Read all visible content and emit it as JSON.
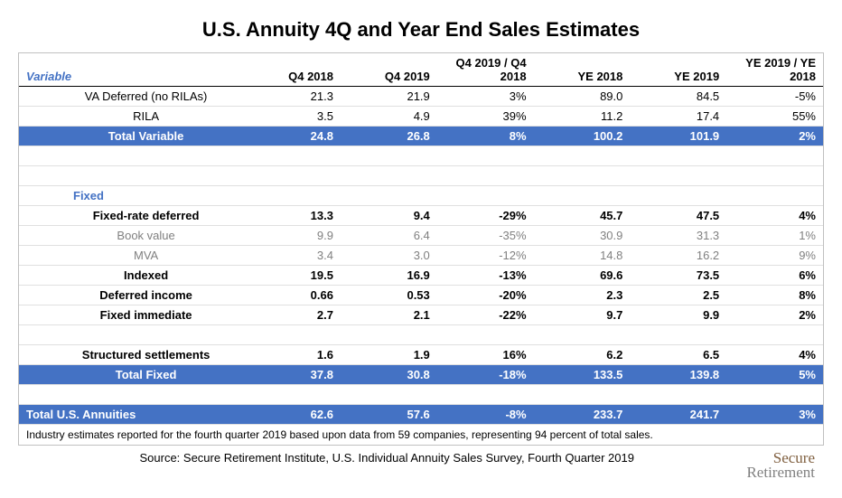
{
  "title": "U.S. Annuity 4Q and Year End Sales Estimates",
  "columns": [
    "Q4 2018",
    "Q4 2019",
    "Q4 2019 / Q4 2018",
    "YE 2018",
    "YE 2019",
    "YE 2019 / YE 2018"
  ],
  "variable_header": "Variable",
  "fixed_header": "Fixed",
  "rows_variable": [
    {
      "label": "VA Deferred (no RILAs)",
      "v": [
        "21.3",
        "21.9",
        "3%",
        "89.0",
        "84.5",
        "-5%"
      ],
      "cls": ""
    },
    {
      "label": "RILA",
      "v": [
        "3.5",
        "4.9",
        "39%",
        "11.2",
        "17.4",
        "55%"
      ],
      "cls": ""
    }
  ],
  "total_variable": {
    "label": "Total Variable",
    "v": [
      "24.8",
      "26.8",
      "8%",
      "100.2",
      "101.9",
      "2%"
    ]
  },
  "rows_fixed": [
    {
      "label": "Fixed-rate deferred",
      "v": [
        "13.3",
        "9.4",
        "-29%",
        "45.7",
        "47.5",
        "4%"
      ],
      "cls": "bold-row"
    },
    {
      "label": "Book value",
      "v": [
        "9.9",
        "6.4",
        "-35%",
        "30.9",
        "31.3",
        "1%"
      ],
      "cls": "gray-row"
    },
    {
      "label": "MVA",
      "v": [
        "3.4",
        "3.0",
        "-12%",
        "14.8",
        "16.2",
        "9%"
      ],
      "cls": "gray-row"
    },
    {
      "label": "Indexed",
      "v": [
        "19.5",
        "16.9",
        "-13%",
        "69.6",
        "73.5",
        "6%"
      ],
      "cls": "bold-row"
    },
    {
      "label": "Deferred income",
      "v": [
        "0.66",
        "0.53",
        "-20%",
        "2.3",
        "2.5",
        "8%"
      ],
      "cls": "bold-row"
    },
    {
      "label": "Fixed immediate",
      "v": [
        "2.7",
        "2.1",
        "-22%",
        "9.7",
        "9.9",
        "2%"
      ],
      "cls": "bold-row"
    }
  ],
  "structured": {
    "label": "Structured settlements",
    "v": [
      "1.6",
      "1.9",
      "16%",
      "6.2",
      "6.5",
      "4%"
    ]
  },
  "total_fixed": {
    "label": "Total Fixed",
    "v": [
      "37.8",
      "30.8",
      "-18%",
      "133.5",
      "139.8",
      "5%"
    ]
  },
  "total_us": {
    "label": "Total U.S. Annuities",
    "v": [
      "62.6",
      "57.6",
      "-8%",
      "233.7",
      "241.7",
      "3%"
    ]
  },
  "footnote": "Industry estimates reported for the fourth quarter 2019 based upon data from 59 companies, representing 94 percent of total sales.",
  "source": "Source: Secure Retirement Institute, U.S. Individual Annuity Sales Survey, Fourth Quarter 2019",
  "logo_top": "Secure",
  "logo_bot": "Retirement",
  "colors": {
    "accent": "#4472c4",
    "gray": "#808080",
    "border": "#e0e0e0",
    "bg": "#ffffff"
  },
  "fontsize": {
    "title": 22,
    "body": 13,
    "footnote": 12
  }
}
